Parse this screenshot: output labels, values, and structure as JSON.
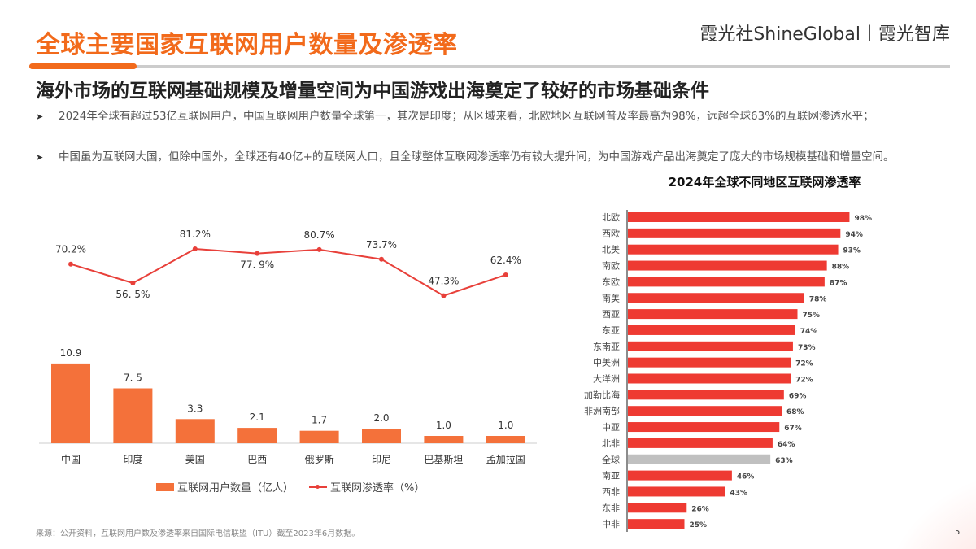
{
  "header": {
    "title": "全球主要国家互联网用户数量及渗透率",
    "brand": "霞光社ShineGlobal丨霞光智库",
    "subtitle": "海外市场的互联网基础规模及增量空间为中国游戏出海奠定了较好的市场基础条件"
  },
  "bullets": [
    "2024年全球有超过53亿互联网用户，中国互联网用户数量全球第一，其次是印度；从区域来看，北欧地区互联网普及率最高为98%，远超全球63%的互联网渗透水平；",
    "中国虽为互联网大国，但除中国外，全球还有40亿+的互联网人口，且全球整体互联网渗透率仍有较大提升间，为中国游戏产品出海奠定了庞大的市场规模基础和增量空间。"
  ],
  "colors": {
    "accent": "#f26a1b",
    "bar_users": "#f4713a",
    "line": "#e8403a",
    "bar_region": "#ee3a32",
    "bar_global": "#c0c0c0"
  },
  "chart_data": [
    {
      "type": "bar+line",
      "categories": [
        "中国",
        "印度",
        "美国",
        "巴西",
        "俄罗斯",
        "印尼",
        "巴基斯坦",
        "孟加拉国"
      ],
      "series": [
        {
          "name": "互联网用户数量（亿人）",
          "type": "bar",
          "values": [
            10.9,
            7.5,
            3.3,
            2.1,
            1.7,
            2.0,
            1.0,
            1.0
          ],
          "labels": [
            "10.9",
            "7. 5",
            "3.3",
            "2.1",
            "1.7",
            "2.0",
            "1.0",
            "1.0"
          ]
        },
        {
          "name": "互联网渗透率（%）",
          "type": "line",
          "values": [
            70.2,
            56.5,
            81.2,
            77.9,
            80.7,
            73.7,
            47.3,
            62.4
          ],
          "labels": [
            "70.2%",
            "56. 5%",
            "81.2%",
            "77. 9%",
            "80.7%",
            "73.7%",
            "47.3%",
            "62.4%"
          ]
        }
      ],
      "legend": "bottom",
      "grid": false
    },
    {
      "type": "bar",
      "orientation": "horizontal",
      "title": "2024年全球不同地区互联网渗透率",
      "categories": [
        "北欧",
        "西欧",
        "北美",
        "南欧",
        "东欧",
        "南美",
        "西亚",
        "东亚",
        "东南亚",
        "中美洲",
        "大洋洲",
        "加勒比海",
        "非洲南部",
        "中亚",
        "北非",
        "全球",
        "南亚",
        "西非",
        "东非",
        "中非"
      ],
      "values": [
        98,
        94,
        93,
        88,
        87,
        78,
        75,
        74,
        73,
        72,
        72,
        69,
        68,
        67,
        64,
        63,
        46,
        43,
        26,
        25
      ],
      "labels": [
        "98%",
        "94%",
        "93%",
        "88%",
        "87%",
        "78%",
        "75%",
        "74%",
        "73%",
        "72%",
        "72%",
        "69%",
        "68%",
        "67%",
        "64%",
        "63%",
        "46%",
        "43%",
        "26%",
        "25%"
      ],
      "highlight": "全球",
      "unit": "%",
      "grid": false
    }
  ],
  "footnote": "来源：公开资料，互联网用户数及渗透率来自国际电信联盟（ITU）截至2023年6月数据。",
  "page_number": "5"
}
